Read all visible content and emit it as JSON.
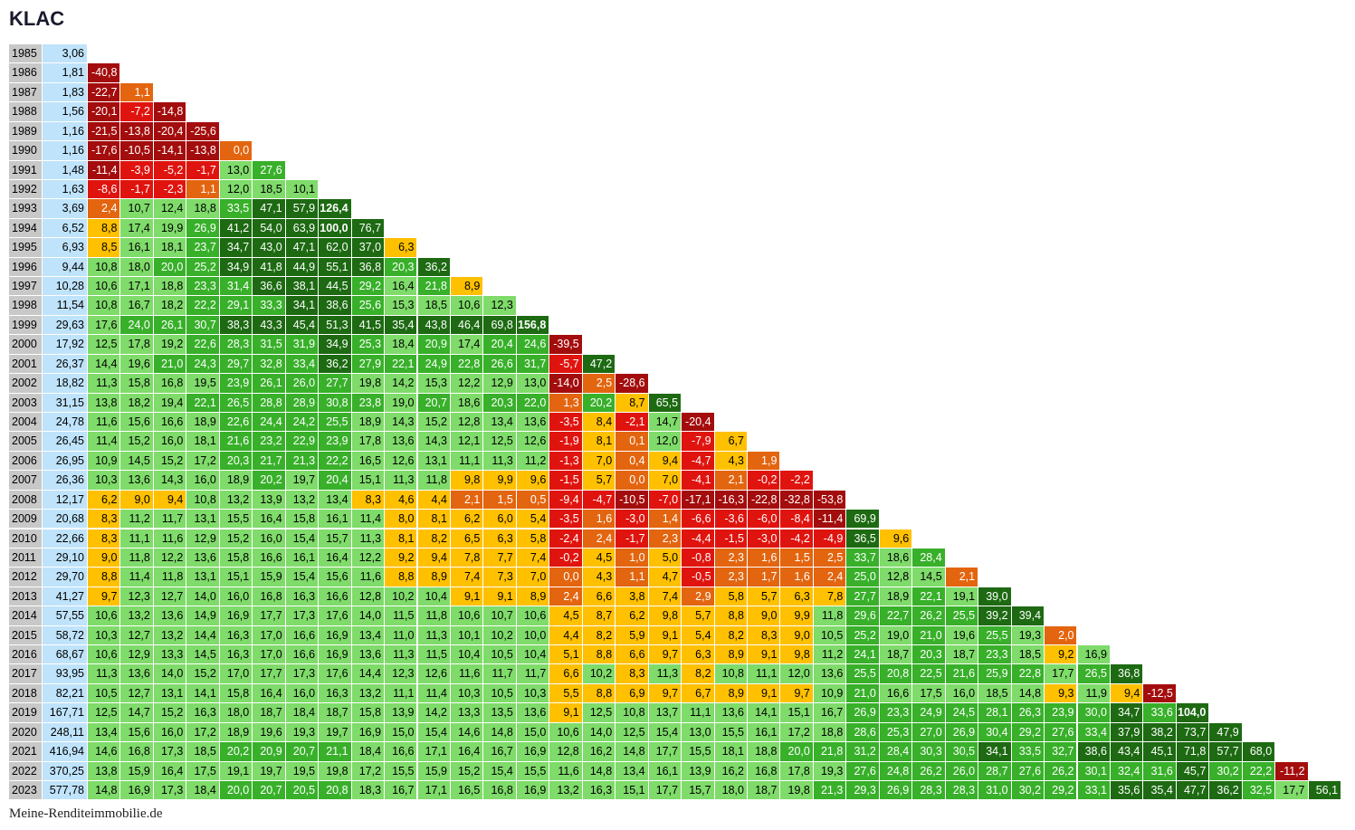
{
  "title": "KLAC",
  "footer": "Meine-Renditeimmobilie.de",
  "rows": [
    {
      "year": "1985",
      "price": "3,06",
      "cells": []
    },
    {
      "year": "1986",
      "price": "1,81",
      "cells": [
        "-40,8"
      ]
    },
    {
      "year": "1987",
      "price": "1,83",
      "cells": [
        "-22,7",
        "1,1"
      ]
    },
    {
      "year": "1988",
      "price": "1,56",
      "cells": [
        "-20,1",
        "-7,2",
        "-14,8"
      ]
    },
    {
      "year": "1989",
      "price": "1,16",
      "cells": [
        "-21,5",
        "-13,8",
        "-20,4",
        "-25,6"
      ]
    },
    {
      "year": "1990",
      "price": "1,16",
      "cells": [
        "-17,6",
        "-10,5",
        "-14,1",
        "-13,8",
        "0,0"
      ]
    },
    {
      "year": "1991",
      "price": "1,48",
      "cells": [
        "-11,4",
        "-3,9",
        "-5,2",
        "-1,7",
        "13,0",
        "27,6"
      ]
    },
    {
      "year": "1992",
      "price": "1,63",
      "cells": [
        "-8,6",
        "-1,7",
        "-2,3",
        "1,1",
        "12,0",
        "18,5",
        "10,1"
      ]
    },
    {
      "year": "1993",
      "price": "3,69",
      "cells": [
        "2,4",
        "10,7",
        "12,4",
        "18,8",
        "33,5",
        "47,1",
        "57,9",
        "126,4"
      ]
    },
    {
      "year": "1994",
      "price": "6,52",
      "cells": [
        "8,8",
        "17,4",
        "19,9",
        "26,9",
        "41,2",
        "54,0",
        "63,9",
        "100,0",
        "76,7"
      ]
    },
    {
      "year": "1995",
      "price": "6,93",
      "cells": [
        "8,5",
        "16,1",
        "18,1",
        "23,7",
        "34,7",
        "43,0",
        "47,1",
        "62,0",
        "37,0",
        "6,3"
      ]
    },
    {
      "year": "1996",
      "price": "9,44",
      "cells": [
        "10,8",
        "18,0",
        "20,0",
        "25,2",
        "34,9",
        "41,8",
        "44,9",
        "55,1",
        "36,8",
        "20,3",
        "36,2"
      ]
    },
    {
      "year": "1997",
      "price": "10,28",
      "cells": [
        "10,6",
        "17,1",
        "18,8",
        "23,3",
        "31,4",
        "36,6",
        "38,1",
        "44,5",
        "29,2",
        "16,4",
        "21,8",
        "8,9"
      ]
    },
    {
      "year": "1998",
      "price": "11,54",
      "cells": [
        "10,8",
        "16,7",
        "18,2",
        "22,2",
        "29,1",
        "33,3",
        "34,1",
        "38,6",
        "25,6",
        "15,3",
        "18,5",
        "10,6",
        "12,3"
      ]
    },
    {
      "year": "1999",
      "price": "29,63",
      "cells": [
        "17,6",
        "24,0",
        "26,1",
        "30,7",
        "38,3",
        "43,3",
        "45,4",
        "51,3",
        "41,5",
        "35,4",
        "43,8",
        "46,4",
        "69,8",
        "156,8"
      ]
    },
    {
      "year": "2000",
      "price": "17,92",
      "cells": [
        "12,5",
        "17,8",
        "19,2",
        "22,6",
        "28,3",
        "31,5",
        "31,9",
        "34,9",
        "25,3",
        "18,4",
        "20,9",
        "17,4",
        "20,4",
        "24,6",
        "-39,5"
      ]
    },
    {
      "year": "2001",
      "price": "26,37",
      "cells": [
        "14,4",
        "19,6",
        "21,0",
        "24,3",
        "29,7",
        "32,8",
        "33,4",
        "36,2",
        "27,9",
        "22,1",
        "24,9",
        "22,8",
        "26,6",
        "31,7",
        "-5,7",
        "47,2"
      ]
    },
    {
      "year": "2002",
      "price": "18,82",
      "cells": [
        "11,3",
        "15,8",
        "16,8",
        "19,5",
        "23,9",
        "26,1",
        "26,0",
        "27,7",
        "19,8",
        "14,2",
        "15,3",
        "12,2",
        "12,9",
        "13,0",
        "-14,0",
        "2,5",
        "-28,6"
      ]
    },
    {
      "year": "2003",
      "price": "31,15",
      "cells": [
        "13,8",
        "18,2",
        "19,4",
        "22,1",
        "26,5",
        "28,8",
        "28,9",
        "30,8",
        "23,8",
        "19,0",
        "20,7",
        "18,6",
        "20,3",
        "22,0",
        "1,3",
        "20,2",
        "8,7",
        "65,5"
      ]
    },
    {
      "year": "2004",
      "price": "24,78",
      "cells": [
        "11,6",
        "15,6",
        "16,6",
        "18,9",
        "22,6",
        "24,4",
        "24,2",
        "25,5",
        "18,9",
        "14,3",
        "15,2",
        "12,8",
        "13,4",
        "13,6",
        "-3,5",
        "8,4",
        "-2,1",
        "14,7",
        "-20,4"
      ]
    },
    {
      "year": "2005",
      "price": "26,45",
      "cells": [
        "11,4",
        "15,2",
        "16,0",
        "18,1",
        "21,6",
        "23,2",
        "22,9",
        "23,9",
        "17,8",
        "13,6",
        "14,3",
        "12,1",
        "12,5",
        "12,6",
        "-1,9",
        "8,1",
        "0,1",
        "12,0",
        "-7,9",
        "6,7"
      ]
    },
    {
      "year": "2006",
      "price": "26,95",
      "cells": [
        "10,9",
        "14,5",
        "15,2",
        "17,2",
        "20,3",
        "21,7",
        "21,3",
        "22,2",
        "16,5",
        "12,6",
        "13,1",
        "11,1",
        "11,3",
        "11,2",
        "-1,3",
        "7,0",
        "0,4",
        "9,4",
        "-4,7",
        "4,3",
        "1,9"
      ]
    },
    {
      "year": "2007",
      "price": "26,36",
      "cells": [
        "10,3",
        "13,6",
        "14,3",
        "16,0",
        "18,9",
        "20,2",
        "19,7",
        "20,4",
        "15,1",
        "11,3",
        "11,8",
        "9,8",
        "9,9",
        "9,6",
        "-1,5",
        "5,7",
        "0,0",
        "7,0",
        "-4,1",
        "2,1",
        "-0,2",
        "-2,2"
      ]
    },
    {
      "year": "2008",
      "price": "12,17",
      "cells": [
        "6,2",
        "9,0",
        "9,4",
        "10,8",
        "13,2",
        "13,9",
        "13,2",
        "13,4",
        "8,3",
        "4,6",
        "4,4",
        "2,1",
        "1,5",
        "0,5",
        "-9,4",
        "-4,7",
        "-10,5",
        "-7,0",
        "-17,1",
        "-16,3",
        "-22,8",
        "-32,8",
        "-53,8"
      ]
    },
    {
      "year": "2009",
      "price": "20,68",
      "cells": [
        "8,3",
        "11,2",
        "11,7",
        "13,1",
        "15,5",
        "16,4",
        "15,8",
        "16,1",
        "11,4",
        "8,0",
        "8,1",
        "6,2",
        "6,0",
        "5,4",
        "-3,5",
        "1,6",
        "-3,0",
        "1,4",
        "-6,6",
        "-3,6",
        "-6,0",
        "-8,4",
        "-11,4",
        "69,9"
      ]
    },
    {
      "year": "2010",
      "price": "22,66",
      "cells": [
        "8,3",
        "11,1",
        "11,6",
        "12,9",
        "15,2",
        "16,0",
        "15,4",
        "15,7",
        "11,3",
        "8,1",
        "8,2",
        "6,5",
        "6,3",
        "5,8",
        "-2,4",
        "2,4",
        "-1,7",
        "2,3",
        "-4,4",
        "-1,5",
        "-3,0",
        "-4,2",
        "-4,9",
        "36,5",
        "9,6"
      ]
    },
    {
      "year": "2011",
      "price": "29,10",
      "cells": [
        "9,0",
        "11,8",
        "12,2",
        "13,6",
        "15,8",
        "16,6",
        "16,1",
        "16,4",
        "12,2",
        "9,2",
        "9,4",
        "7,8",
        "7,7",
        "7,4",
        "-0,2",
        "4,5",
        "1,0",
        "5,0",
        "-0,8",
        "2,3",
        "1,6",
        "1,5",
        "2,5",
        "33,7",
        "18,6",
        "28,4"
      ]
    },
    {
      "year": "2012",
      "price": "29,70",
      "cells": [
        "8,8",
        "11,4",
        "11,8",
        "13,1",
        "15,1",
        "15,9",
        "15,4",
        "15,6",
        "11,6",
        "8,8",
        "8,9",
        "7,4",
        "7,3",
        "7,0",
        "0,0",
        "4,3",
        "1,1",
        "4,7",
        "-0,5",
        "2,3",
        "1,7",
        "1,6",
        "2,4",
        "25,0",
        "12,8",
        "14,5",
        "2,1"
      ]
    },
    {
      "year": "2013",
      "price": "41,27",
      "cells": [
        "9,7",
        "12,3",
        "12,7",
        "14,0",
        "16,0",
        "16,8",
        "16,3",
        "16,6",
        "12,8",
        "10,2",
        "10,4",
        "9,1",
        "9,1",
        "8,9",
        "2,4",
        "6,6",
        "3,8",
        "7,4",
        "2,9",
        "5,8",
        "5,7",
        "6,3",
        "7,8",
        "27,7",
        "18,9",
        "22,1",
        "19,1",
        "39,0"
      ]
    },
    {
      "year": "2014",
      "price": "57,55",
      "cells": [
        "10,6",
        "13,2",
        "13,6",
        "14,9",
        "16,9",
        "17,7",
        "17,3",
        "17,6",
        "14,0",
        "11,5",
        "11,8",
        "10,6",
        "10,7",
        "10,6",
        "4,5",
        "8,7",
        "6,2",
        "9,8",
        "5,7",
        "8,8",
        "9,0",
        "9,9",
        "11,8",
        "29,6",
        "22,7",
        "26,2",
        "25,5",
        "39,2",
        "39,4"
      ]
    },
    {
      "year": "2015",
      "price": "58,72",
      "cells": [
        "10,3",
        "12,7",
        "13,2",
        "14,4",
        "16,3",
        "17,0",
        "16,6",
        "16,9",
        "13,4",
        "11,0",
        "11,3",
        "10,1",
        "10,2",
        "10,0",
        "4,4",
        "8,2",
        "5,9",
        "9,1",
        "5,4",
        "8,2",
        "8,3",
        "9,0",
        "10,5",
        "25,2",
        "19,0",
        "21,0",
        "19,6",
        "25,5",
        "19,3",
        "2,0"
      ]
    },
    {
      "year": "2016",
      "price": "68,67",
      "cells": [
        "10,6",
        "12,9",
        "13,3",
        "14,5",
        "16,3",
        "17,0",
        "16,6",
        "16,9",
        "13,6",
        "11,3",
        "11,5",
        "10,4",
        "10,5",
        "10,4",
        "5,1",
        "8,8",
        "6,6",
        "9,7",
        "6,3",
        "8,9",
        "9,1",
        "9,8",
        "11,2",
        "24,1",
        "18,7",
        "20,3",
        "18,7",
        "23,3",
        "18,5",
        "9,2",
        "16,9"
      ]
    },
    {
      "year": "2017",
      "price": "93,95",
      "cells": [
        "11,3",
        "13,6",
        "14,0",
        "15,2",
        "17,0",
        "17,7",
        "17,3",
        "17,6",
        "14,4",
        "12,3",
        "12,6",
        "11,6",
        "11,7",
        "11,7",
        "6,6",
        "10,2",
        "8,3",
        "11,3",
        "8,2",
        "10,8",
        "11,1",
        "12,0",
        "13,6",
        "25,5",
        "20,8",
        "22,5",
        "21,6",
        "25,9",
        "22,8",
        "17,7",
        "26,5",
        "36,8"
      ]
    },
    {
      "year": "2018",
      "price": "82,21",
      "cells": [
        "10,5",
        "12,7",
        "13,1",
        "14,1",
        "15,8",
        "16,4",
        "16,0",
        "16,3",
        "13,2",
        "11,1",
        "11,4",
        "10,3",
        "10,5",
        "10,3",
        "5,5",
        "8,8",
        "6,9",
        "9,7",
        "6,7",
        "8,9",
        "9,1",
        "9,7",
        "10,9",
        "21,0",
        "16,6",
        "17,5",
        "16,0",
        "18,5",
        "14,8",
        "9,3",
        "11,9",
        "9,4",
        "-12,5"
      ]
    },
    {
      "year": "2019",
      "price": "167,71",
      "cells": [
        "12,5",
        "14,7",
        "15,2",
        "16,3",
        "18,0",
        "18,7",
        "18,4",
        "18,7",
        "15,8",
        "13,9",
        "14,2",
        "13,3",
        "13,5",
        "13,6",
        "9,1",
        "12,5",
        "10,8",
        "13,7",
        "11,1",
        "13,6",
        "14,1",
        "15,1",
        "16,7",
        "26,9",
        "23,3",
        "24,9",
        "24,5",
        "28,1",
        "26,3",
        "23,9",
        "30,0",
        "34,7",
        "33,6",
        "104,0"
      ]
    },
    {
      "year": "2020",
      "price": "248,11",
      "cells": [
        "13,4",
        "15,6",
        "16,0",
        "17,2",
        "18,9",
        "19,6",
        "19,3",
        "19,7",
        "16,9",
        "15,0",
        "15,4",
        "14,6",
        "14,8",
        "15,0",
        "10,6",
        "14,0",
        "12,5",
        "15,4",
        "13,0",
        "15,5",
        "16,1",
        "17,2",
        "18,8",
        "28,6",
        "25,3",
        "27,0",
        "26,9",
        "30,4",
        "29,2",
        "27,6",
        "33,4",
        "37,9",
        "38,2",
        "73,7",
        "47,9"
      ]
    },
    {
      "year": "2021",
      "price": "416,94",
      "cells": [
        "14,6",
        "16,8",
        "17,3",
        "18,5",
        "20,2",
        "20,9",
        "20,7",
        "21,1",
        "18,4",
        "16,6",
        "17,1",
        "16,4",
        "16,7",
        "16,9",
        "12,8",
        "16,2",
        "14,8",
        "17,7",
        "15,5",
        "18,1",
        "18,8",
        "20,0",
        "21,8",
        "31,2",
        "28,4",
        "30,3",
        "30,5",
        "34,1",
        "33,5",
        "32,7",
        "38,6",
        "43,4",
        "45,1",
        "71,8",
        "57,7",
        "68,0"
      ]
    },
    {
      "year": "2022",
      "price": "370,25",
      "cells": [
        "13,8",
        "15,9",
        "16,4",
        "17,5",
        "19,1",
        "19,7",
        "19,5",
        "19,8",
        "17,2",
        "15,5",
        "15,9",
        "15,2",
        "15,4",
        "15,5",
        "11,6",
        "14,8",
        "13,4",
        "16,1",
        "13,9",
        "16,2",
        "16,8",
        "17,8",
        "19,3",
        "27,6",
        "24,8",
        "26,2",
        "26,0",
        "28,7",
        "27,6",
        "26,2",
        "30,1",
        "32,4",
        "31,6",
        "45,7",
        "30,2",
        "22,2",
        "-11,2"
      ]
    },
    {
      "year": "2023",
      "price": "577,78",
      "cells": [
        "14,8",
        "16,9",
        "17,3",
        "18,4",
        "20,0",
        "20,7",
        "20,5",
        "20,8",
        "18,3",
        "16,7",
        "17,1",
        "16,5",
        "16,8",
        "16,9",
        "13,2",
        "16,3",
        "15,1",
        "17,7",
        "15,7",
        "18,0",
        "18,7",
        "19,8",
        "21,3",
        "29,3",
        "26,9",
        "28,3",
        "28,3",
        "31,0",
        "30,2",
        "29,2",
        "33,1",
        "35,6",
        "35,4",
        "47,7",
        "36,2",
        "32,5",
        "17,7",
        "56,1"
      ]
    }
  ]
}
